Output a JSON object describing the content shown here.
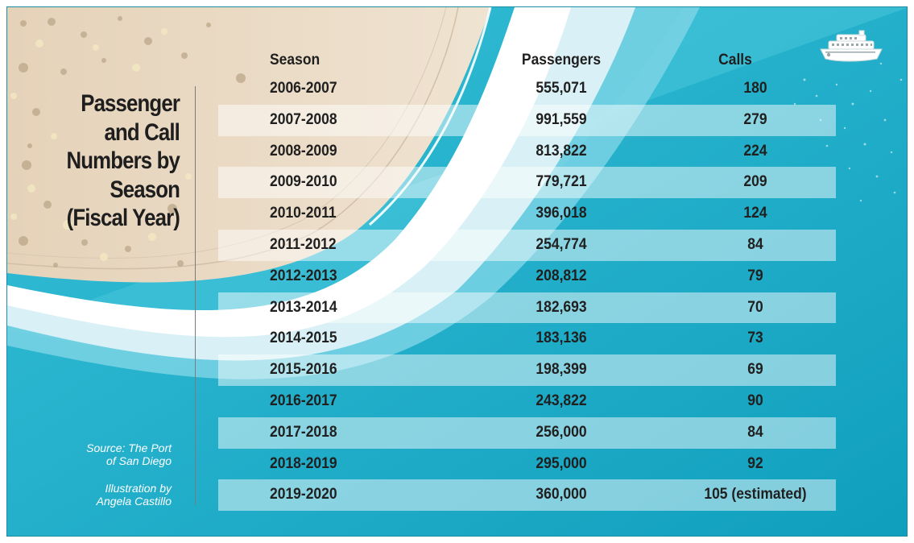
{
  "title_lines": [
    "Passenger",
    "and Call",
    "Numbers by",
    "Season",
    "(Fiscal Year)"
  ],
  "source": [
    "Source: The Port",
    "of San Diego"
  ],
  "illustration_credit": [
    "Illustration by",
    "Angela Castillo"
  ],
  "colors": {
    "ocean": "#17aac6",
    "sand": "#e6d6bf",
    "band": "#b4e4ee",
    "text": "#1f1f1f"
  },
  "icons": [
    "cruise-ship-icon"
  ],
  "chart_data": {
    "type": "table",
    "columns": [
      "Season",
      "Passengers",
      "Calls"
    ],
    "rows": [
      {
        "season": "2006-2007",
        "passengers": "555,071",
        "calls": "180"
      },
      {
        "season": "2007-2008",
        "passengers": "991,559",
        "calls": "279"
      },
      {
        "season": "2008-2009",
        "passengers": "813,822",
        "calls": "224"
      },
      {
        "season": "2009-2010",
        "passengers": "779,721",
        "calls": "209"
      },
      {
        "season": "2010-2011",
        "passengers": "396,018",
        "calls": "124"
      },
      {
        "season": "2011-2012",
        "passengers": "254,774",
        "calls": "84"
      },
      {
        "season": "2012-2013",
        "passengers": "208,812",
        "calls": "79"
      },
      {
        "season": "2013-2014",
        "passengers": "182,693",
        "calls": "70"
      },
      {
        "season": "2014-2015",
        "passengers": "183,136",
        "calls": "73"
      },
      {
        "season": "2015-2016",
        "passengers": "198,399",
        "calls": "69"
      },
      {
        "season": "2016-2017",
        "passengers": "243,822",
        "calls": "90"
      },
      {
        "season": "2017-2018",
        "passengers": "256,000",
        "calls": "84"
      },
      {
        "season": "2018-2019",
        "passengers": "295,000",
        "calls": "92"
      },
      {
        "season": "2019-2020",
        "passengers": "360,000",
        "calls": "105  (estimated)"
      }
    ]
  }
}
